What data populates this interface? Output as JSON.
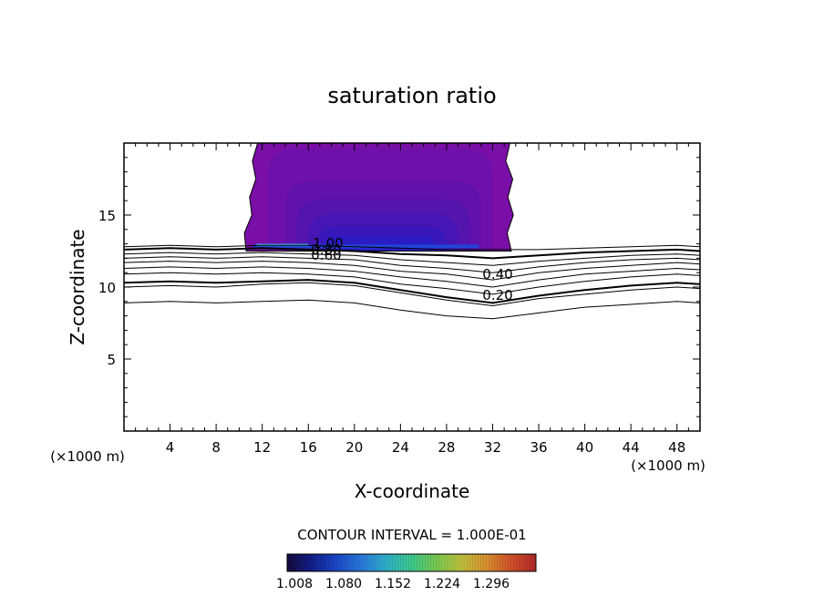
{
  "chart_data": {
    "type": "contour",
    "title": "saturation ratio",
    "xlabel": "X-coordinate",
    "ylabel": "Z-coordinate",
    "x_unit_left": "(×1000 m)",
    "x_unit_right": "(×1000 m)",
    "xlim": [
      0,
      50
    ],
    "ylim": [
      0,
      20
    ],
    "x_ticks": [
      "4",
      "8",
      "12",
      "16",
      "20",
      "24",
      "28",
      "32",
      "36",
      "40",
      "44",
      "48"
    ],
    "y_ticks": [
      "5",
      "10",
      "15"
    ],
    "contour_interval_label": "CONTOUR INTERVAL = 1.000E-01",
    "contour_labels": [
      "1.00",
      "0.80",
      "0.60",
      "0.40",
      "0.20"
    ],
    "colorbar": {
      "ticks": [
        "1.008",
        "1.080",
        "1.152",
        "1.224",
        "1.296"
      ],
      "colors": [
        "#140a3c",
        "#12208a",
        "#1a48c8",
        "#2a7adc",
        "#30b0c8",
        "#3cc88c",
        "#78c850",
        "#bec03c",
        "#d89030",
        "#d05028",
        "#b02828"
      ]
    },
    "cloud_region": {
      "x_range": [
        10,
        34
      ],
      "z_range": [
        12.5,
        20
      ],
      "fill_colors": [
        "#7a0fa8",
        "#6e10aa",
        "#6212ac",
        "#5414ae",
        "#4616b4",
        "#3818ba",
        "#2a1cc2",
        "#2244d8",
        "#3fb0ee"
      ]
    },
    "contour_lines": [
      {
        "level": "1.00",
        "points": [
          [
            0,
            12.8
          ],
          [
            4,
            12.9
          ],
          [
            8,
            12.8
          ],
          [
            12,
            12.9
          ],
          [
            16,
            12.9
          ],
          [
            20,
            12.8
          ],
          [
            24,
            12.7
          ],
          [
            28,
            12.6
          ],
          [
            32,
            12.6
          ],
          [
            36,
            12.6
          ],
          [
            40,
            12.7
          ],
          [
            44,
            12.8
          ],
          [
            48,
            12.9
          ],
          [
            50,
            12.8
          ]
        ],
        "bold": false
      },
      {
        "level": "0.90",
        "points": [
          [
            0,
            12.6
          ],
          [
            4,
            12.7
          ],
          [
            8,
            12.6
          ],
          [
            12,
            12.7
          ],
          [
            16,
            12.6
          ],
          [
            20,
            12.5
          ],
          [
            24,
            12.3
          ],
          [
            28,
            12.2
          ],
          [
            32,
            12.0
          ],
          [
            36,
            12.2
          ],
          [
            40,
            12.4
          ],
          [
            44,
            12.5
          ],
          [
            48,
            12.6
          ],
          [
            50,
            12.5
          ]
        ],
        "bold": true
      },
      {
        "level": "0.80",
        "points": [
          [
            0,
            12.3
          ],
          [
            4,
            12.4
          ],
          [
            8,
            12.3
          ],
          [
            12,
            12.4
          ],
          [
            16,
            12.3
          ],
          [
            20,
            12.2
          ],
          [
            24,
            11.9
          ],
          [
            28,
            11.7
          ],
          [
            32,
            11.5
          ],
          [
            36,
            11.8
          ],
          [
            40,
            12.0
          ],
          [
            44,
            12.2
          ],
          [
            48,
            12.3
          ],
          [
            50,
            12.2
          ]
        ],
        "bold": false
      },
      {
        "level": "0.70",
        "points": [
          [
            0,
            12.0
          ],
          [
            4,
            12.1
          ],
          [
            8,
            12.0
          ],
          [
            12,
            12.1
          ],
          [
            16,
            12.0
          ],
          [
            20,
            11.9
          ],
          [
            24,
            11.5
          ],
          [
            28,
            11.3
          ],
          [
            32,
            11.0
          ],
          [
            36,
            11.4
          ],
          [
            40,
            11.7
          ],
          [
            44,
            11.9
          ],
          [
            48,
            12.0
          ],
          [
            50,
            11.9
          ]
        ],
        "bold": false
      },
      {
        "level": "0.60",
        "points": [
          [
            0,
            11.7
          ],
          [
            4,
            11.8
          ],
          [
            8,
            11.7
          ],
          [
            12,
            11.8
          ],
          [
            16,
            11.7
          ],
          [
            20,
            11.5
          ],
          [
            24,
            11.1
          ],
          [
            28,
            10.9
          ],
          [
            32,
            10.5
          ],
          [
            36,
            11.0
          ],
          [
            40,
            11.3
          ],
          [
            44,
            11.5
          ],
          [
            48,
            11.7
          ],
          [
            50,
            11.6
          ]
        ],
        "bold": false
      },
      {
        "level": "0.50",
        "points": [
          [
            0,
            11.3
          ],
          [
            4,
            11.4
          ],
          [
            8,
            11.3
          ],
          [
            12,
            11.4
          ],
          [
            16,
            11.3
          ],
          [
            20,
            11.1
          ],
          [
            24,
            10.7
          ],
          [
            28,
            10.4
          ],
          [
            32,
            10.0
          ],
          [
            36,
            10.5
          ],
          [
            40,
            10.9
          ],
          [
            44,
            11.1
          ],
          [
            48,
            11.3
          ],
          [
            50,
            11.2
          ]
        ],
        "bold": false
      },
      {
        "level": "0.40",
        "points": [
          [
            0,
            10.9
          ],
          [
            4,
            11.0
          ],
          [
            8,
            10.9
          ],
          [
            12,
            11.0
          ],
          [
            16,
            10.9
          ],
          [
            20,
            10.7
          ],
          [
            24,
            10.2
          ],
          [
            28,
            9.9
          ],
          [
            32,
            9.5
          ],
          [
            36,
            10.0
          ],
          [
            40,
            10.4
          ],
          [
            44,
            10.7
          ],
          [
            48,
            10.9
          ],
          [
            50,
            10.8
          ]
        ],
        "bold": false
      },
      {
        "level": "0.30",
        "points": [
          [
            0,
            10.3
          ],
          [
            4,
            10.4
          ],
          [
            8,
            10.3
          ],
          [
            12,
            10.4
          ],
          [
            16,
            10.5
          ],
          [
            20,
            10.3
          ],
          [
            24,
            9.8
          ],
          [
            28,
            9.3
          ],
          [
            32,
            8.9
          ],
          [
            36,
            9.4
          ],
          [
            40,
            9.8
          ],
          [
            44,
            10.1
          ],
          [
            48,
            10.3
          ],
          [
            50,
            10.2
          ]
        ],
        "bold": true
      },
      {
        "level": "0.20",
        "points": [
          [
            0,
            10.0
          ],
          [
            4,
            10.1
          ],
          [
            8,
            10.0
          ],
          [
            12,
            10.2
          ],
          [
            16,
            10.3
          ],
          [
            20,
            10.1
          ],
          [
            24,
            9.6
          ],
          [
            28,
            9.1
          ],
          [
            32,
            8.7
          ],
          [
            36,
            9.2
          ],
          [
            40,
            9.5
          ],
          [
            44,
            9.8
          ],
          [
            48,
            10.0
          ],
          [
            50,
            9.9
          ]
        ],
        "bold": false
      },
      {
        "level": "0.10",
        "points": [
          [
            0,
            8.9
          ],
          [
            4,
            9.0
          ],
          [
            8,
            8.9
          ],
          [
            12,
            9.0
          ],
          [
            16,
            9.1
          ],
          [
            20,
            8.9
          ],
          [
            24,
            8.4
          ],
          [
            28,
            8.0
          ],
          [
            32,
            7.8
          ],
          [
            36,
            8.2
          ],
          [
            40,
            8.6
          ],
          [
            44,
            8.8
          ],
          [
            48,
            9.0
          ],
          [
            50,
            8.9
          ]
        ],
        "bold": false
      }
    ]
  }
}
